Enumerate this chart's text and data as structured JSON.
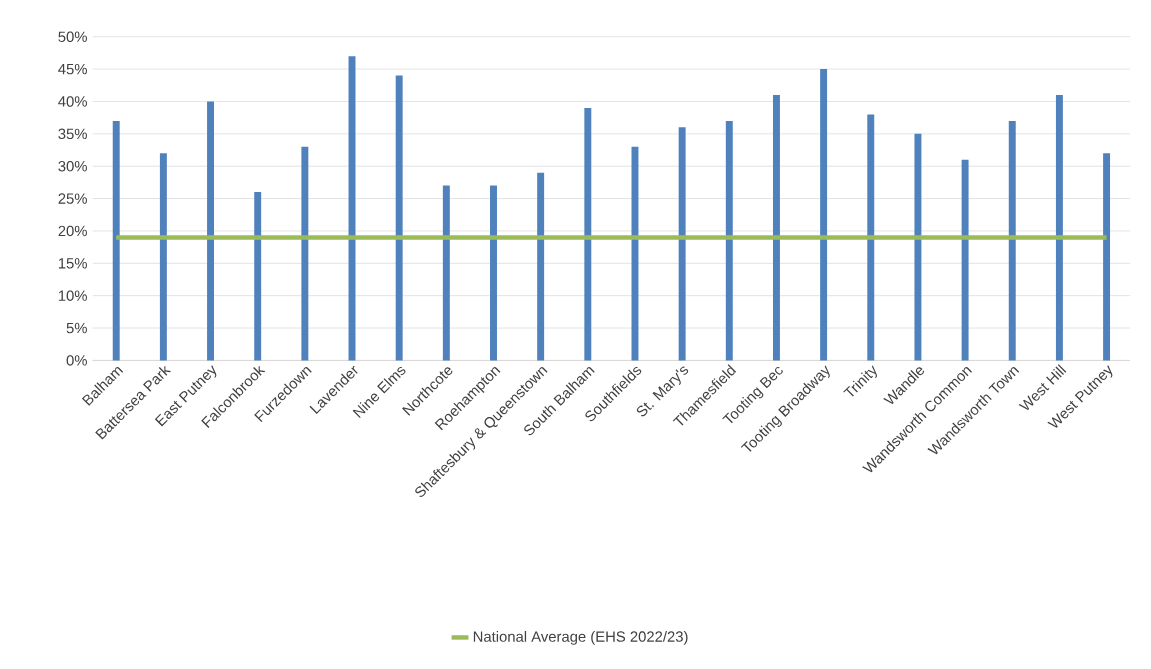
{
  "chart_data": {
    "type": "bar",
    "categories": [
      "Balham",
      "Battersea Park",
      "East Putney",
      "Falconbrook",
      "Furzedown",
      "Lavender",
      "Nine Elms",
      "Northcote",
      "Roehampton",
      "Shaftesbury & Queenstown",
      "South Balham",
      "Southfields",
      "St. Mary's",
      "Thamesfield",
      "Tooting Bec",
      "Tooting Broadway",
      "Trinity",
      "Wandle",
      "Wandsworth Common",
      "Wandsworth Town",
      "West Hill",
      "West Putney"
    ],
    "series": [
      {
        "color": "#4f81bd",
        "values": [
          37,
          32,
          40,
          26,
          33,
          47,
          44,
          27,
          27,
          29,
          39,
          33,
          36,
          37,
          41,
          45,
          38,
          35,
          31,
          37,
          41,
          32
        ]
      },
      {
        "type": "line",
        "name": "National Average (EHS 2022/23)",
        "color": "#9bbb59",
        "values": [
          19,
          19,
          19,
          19,
          19,
          19,
          19,
          19,
          19,
          19,
          19,
          19,
          19,
          19,
          19,
          19,
          19,
          19,
          19,
          19,
          19,
          19
        ]
      }
    ],
    "ylim": [
      0,
      50
    ],
    "yticks": [
      {
        "value": 0,
        "label": "0%"
      },
      {
        "value": 5,
        "label": "5%"
      },
      {
        "value": 10,
        "label": "10%"
      },
      {
        "value": 15,
        "label": "15%"
      },
      {
        "value": 20,
        "label": "20%"
      },
      {
        "value": 25,
        "label": "25%"
      },
      {
        "value": 30,
        "label": "30%"
      },
      {
        "value": 35,
        "label": "35%"
      },
      {
        "value": 40,
        "label": "40%"
      },
      {
        "value": 45,
        "label": "45%"
      },
      {
        "value": 50,
        "label": "50%"
      }
    ],
    "grid": "y",
    "legend": "bottom"
  }
}
